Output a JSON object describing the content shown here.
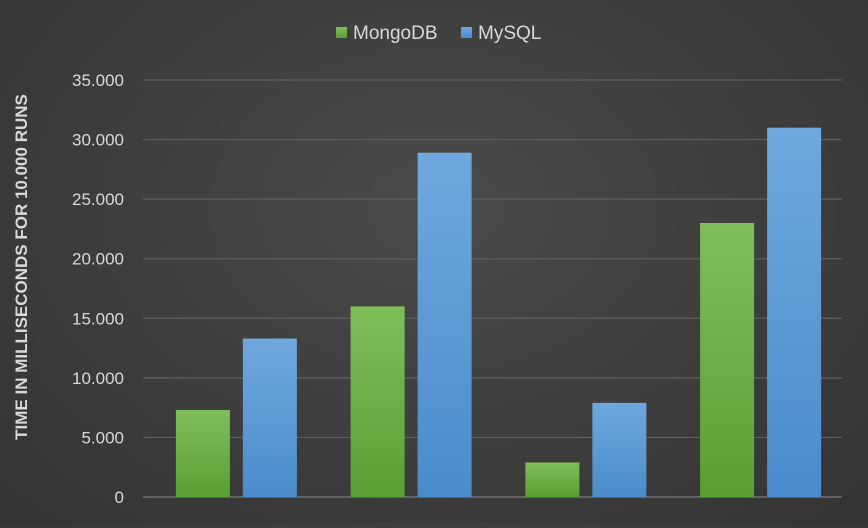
{
  "chart_data": {
    "type": "bar",
    "title": "",
    "xlabel": "",
    "ylabel": "TIME IN MILLISECONDS FOR 10.000 RUNS",
    "categories": [
      "",
      "",
      "",
      ""
    ],
    "series": [
      {
        "name": "MongoDB",
        "color": "#6dae47",
        "values": [
          7300,
          16000,
          2900,
          23000
        ]
      },
      {
        "name": "MySQL",
        "color": "#5b9bd5",
        "values": [
          13300,
          28900,
          7900,
          31000
        ]
      }
    ],
    "ylim": [
      0,
      35000
    ],
    "yticks": [
      {
        "value": 0,
        "label": "0"
      },
      {
        "value": 5000,
        "label": "5.000"
      },
      {
        "value": 10000,
        "label": "10.000"
      },
      {
        "value": 15000,
        "label": "15.000"
      },
      {
        "value": 20000,
        "label": "20.000"
      },
      {
        "value": 25000,
        "label": "25.000"
      },
      {
        "value": 30000,
        "label": "30.000"
      },
      {
        "value": 35000,
        "label": "35.000"
      }
    ],
    "grid": true,
    "legend_position": "top-center"
  },
  "colors": {
    "text": "#d9d9d9",
    "gridline": "#5f5f5f",
    "axis_line": "#7a7a7a"
  }
}
